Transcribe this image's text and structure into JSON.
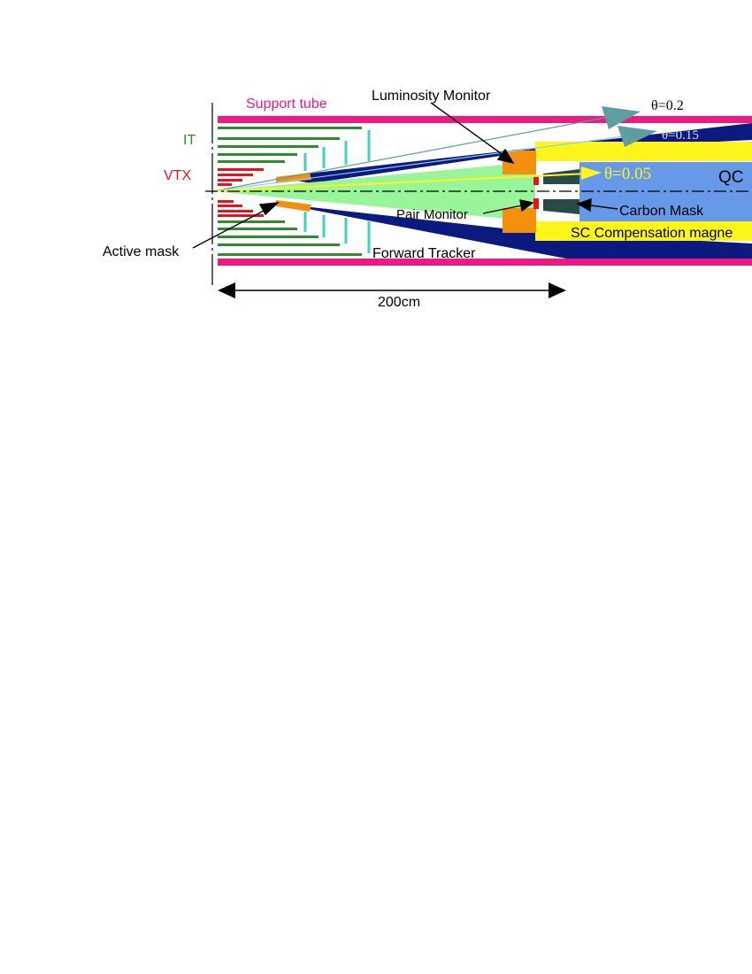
{
  "labels": {
    "support_tube": "Support tube",
    "luminosity_monitor": "Luminosity Monitor",
    "it": "IT",
    "vtx": "VTX",
    "active_mask": "Active mask",
    "pair_monitor": "Pair Monitor",
    "forward_tracker": "Forward Tracker",
    "carbon_mask": "Carbon Mask",
    "sc_compensation_magnet": "SC Compensation magne",
    "qc": "QC",
    "theta_02": "θ=0.2",
    "theta_015": "θ=0.15",
    "theta_005": "θ=0.05",
    "scale": "200cm"
  },
  "colors": {
    "support_tube": "#ee1a84",
    "inner_tracker": "#2e8b2e",
    "vertex": "#e8141c",
    "forward_tracker": "#40d0c8",
    "mask": "#f5900f",
    "cone_navy": "#0c1a80",
    "cone_light": "#99f59a",
    "qc": "#6699e8",
    "sc_magnet": "#fff51a",
    "carbon_mask": "#2a4a48",
    "arrow_teal": "#5f9ea0"
  }
}
